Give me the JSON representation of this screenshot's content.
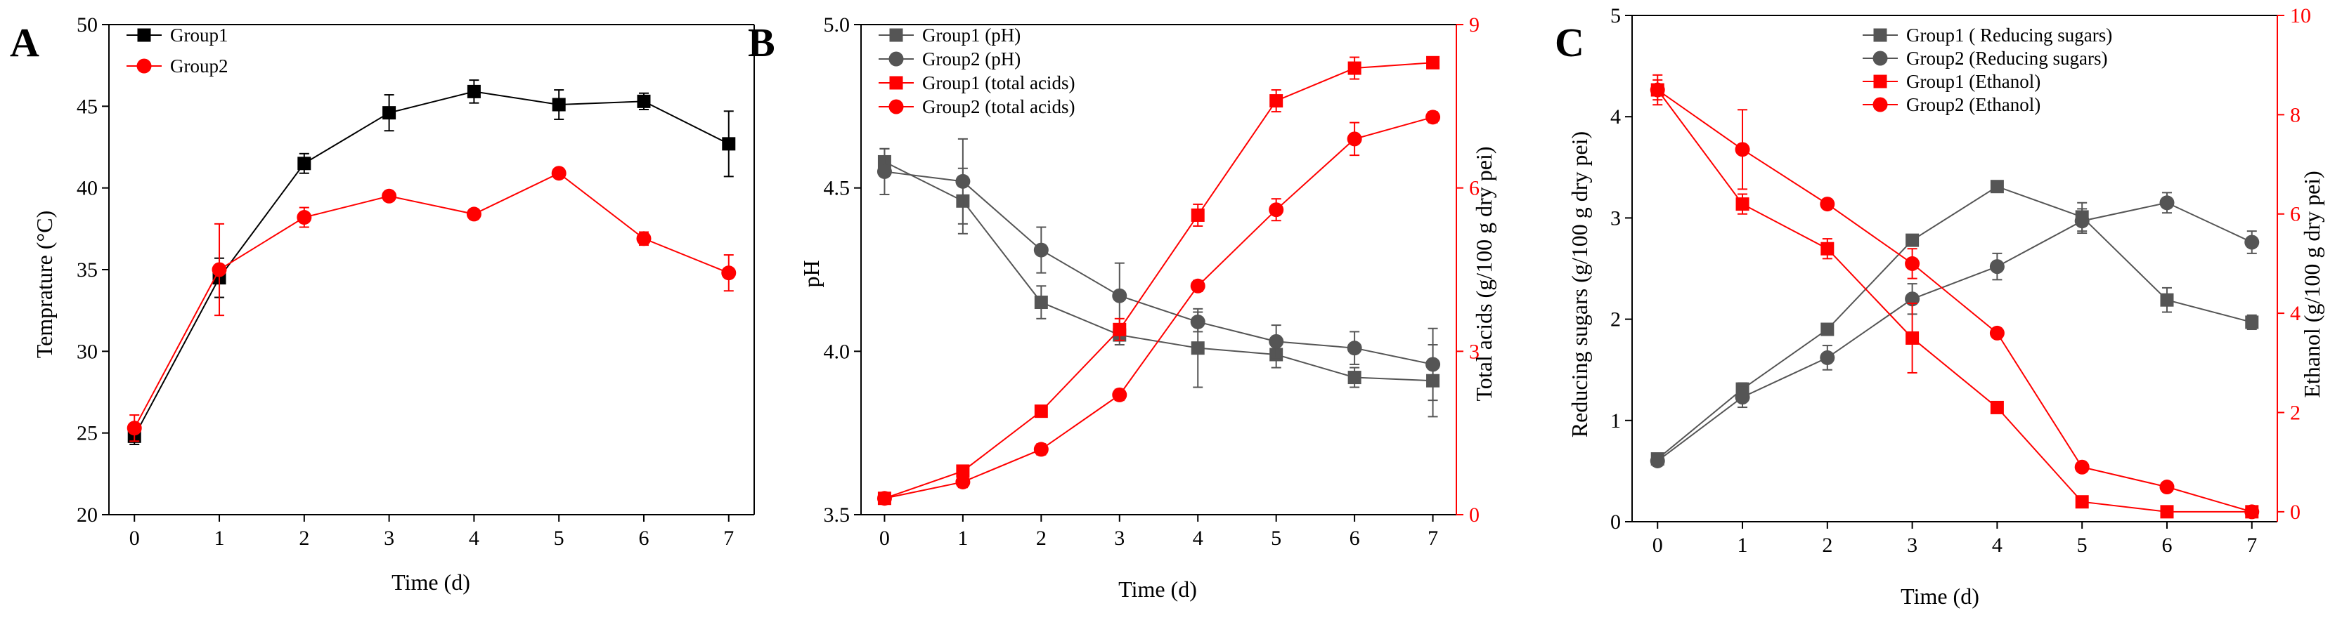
{
  "figure": {
    "panels": [
      {
        "letter": "A",
        "xlabel": "Time (d)",
        "ylabel": "Temprature (°C)"
      },
      {
        "letter": "B",
        "xlabel": "Time (d)",
        "ylabel": "pH",
        "ylabel_right": "Total acids (g/100 g dry pei)"
      },
      {
        "letter": "C",
        "xlabel": "Time (d)",
        "ylabel": "Reducing sugars (g/100 g dry pei)",
        "ylabel_right": "Ethanol (g/100 g dry pei)"
      }
    ]
  },
  "chart_data": [
    {
      "type": "line",
      "panel": "A",
      "xlabel": "Time (d)",
      "ylabel": "Temprature (°C)",
      "x": [
        0,
        1,
        2,
        3,
        4,
        5,
        6,
        7
      ],
      "xlim": [
        -0.3,
        7.3
      ],
      "ylim": [
        20,
        50
      ],
      "xticks": [
        0,
        1,
        2,
        3,
        4,
        5,
        6,
        7
      ],
      "yticks": [
        20,
        25,
        30,
        35,
        40,
        45,
        50
      ],
      "legend_position": "top-left",
      "grid": false,
      "series": [
        {
          "name": "Group1",
          "axis": "left",
          "marker": "square",
          "color": "#000000",
          "values": [
            24.8,
            34.5,
            41.5,
            44.6,
            45.9,
            45.1,
            45.3,
            42.7
          ],
          "errors": [
            0.5,
            1.2,
            0.6,
            1.1,
            0.7,
            0.9,
            0.5,
            2.0
          ]
        },
        {
          "name": "Group2",
          "axis": "left",
          "marker": "circle",
          "color": "#ff0000",
          "values": [
            25.3,
            35.0,
            38.2,
            39.5,
            38.4,
            40.9,
            36.9,
            34.8
          ],
          "errors": [
            0.8,
            2.8,
            0.6,
            0.3,
            0.3,
            0.3,
            0.4,
            1.1
          ]
        }
      ]
    },
    {
      "type": "line",
      "panel": "B",
      "xlabel": "Time (d)",
      "ylabel": "pH",
      "ylabel_right": "Total acids (g/100 g dry pei)",
      "x": [
        0,
        1,
        2,
        3,
        4,
        5,
        6,
        7
      ],
      "xlim": [
        -0.3,
        7.3
      ],
      "ylim": [
        3.5,
        5.0
      ],
      "ylim_right": [
        0,
        9
      ],
      "xticks": [
        0,
        1,
        2,
        3,
        4,
        5,
        6,
        7
      ],
      "yticks": [
        3.5,
        4.0,
        4.5,
        5.0
      ],
      "yticks_right": [
        0,
        3,
        6,
        9
      ],
      "legend_position": "top-left",
      "grid": false,
      "series": [
        {
          "name": "Group1 (pH)",
          "axis": "left",
          "marker": "square",
          "color": "#555555",
          "values": [
            4.58,
            4.46,
            4.15,
            4.05,
            4.01,
            3.99,
            3.92,
            3.91
          ],
          "errors": [
            0.04,
            0.1,
            0.05,
            0.03,
            0.12,
            0.04,
            0.03,
            0.11
          ]
        },
        {
          "name": "Group2 (pH)",
          "axis": "left",
          "marker": "circle",
          "color": "#555555",
          "values": [
            4.55,
            4.52,
            4.31,
            4.17,
            4.09,
            4.03,
            4.01,
            3.96
          ],
          "errors": [
            0.07,
            0.13,
            0.07,
            0.1,
            0.03,
            0.05,
            0.05,
            0.11
          ]
        },
        {
          "name": "Group1 (total acids)",
          "axis": "right",
          "marker": "square",
          "color": "#ff0000",
          "values": [
            0.3,
            0.8,
            1.9,
            3.4,
            5.5,
            7.6,
            8.2,
            8.3
          ],
          "errors": [
            0.1,
            0.1,
            0.1,
            0.2,
            0.2,
            0.2,
            0.2,
            0.1
          ]
        },
        {
          "name": "Group2 (total acids)",
          "axis": "right",
          "marker": "circle",
          "color": "#ff0000",
          "values": [
            0.3,
            0.6,
            1.2,
            2.2,
            4.2,
            5.6,
            6.9,
            7.3
          ],
          "errors": [
            0.1,
            0.1,
            0.1,
            0.1,
            0.1,
            0.2,
            0.3,
            0.1
          ]
        }
      ]
    },
    {
      "type": "line",
      "panel": "C",
      "xlabel": "Time (d)",
      "ylabel": "Reducing sugars (g/100 g dry pei)",
      "ylabel_right": "Ethanol (g/100 g dry pei)",
      "x": [
        0,
        1,
        2,
        3,
        4,
        5,
        6,
        7
      ],
      "xlim": [
        -0.3,
        7.3
      ],
      "ylim": [
        0,
        5
      ],
      "ylim_right": [
        -0.2,
        10
      ],
      "xticks": [
        0,
        1,
        2,
        3,
        4,
        5,
        6,
        7
      ],
      "yticks": [
        0,
        1,
        2,
        3,
        4,
        5
      ],
      "yticks_right": [
        0,
        2,
        4,
        6,
        8,
        10
      ],
      "legend_position": "top-center",
      "grid": false,
      "series": [
        {
          "name": "Group1 ( Reducing sugars)",
          "axis": "left",
          "marker": "square",
          "color": "#555555",
          "values": [
            0.62,
            1.31,
            1.9,
            2.78,
            3.31,
            3.01,
            2.19,
            1.97
          ],
          "errors": [
            0.05,
            0.06,
            0.05,
            0.05,
            0.04,
            0.14,
            0.12,
            0.07
          ]
        },
        {
          "name": "Group2 (Reducing sugars)",
          "axis": "left",
          "marker": "circle",
          "color": "#555555",
          "values": [
            0.6,
            1.23,
            1.62,
            2.2,
            2.52,
            2.97,
            3.15,
            2.76
          ],
          "errors": [
            0.05,
            0.1,
            0.12,
            0.15,
            0.13,
            0.12,
            0.1,
            0.11
          ]
        },
        {
          "name": "Group1 (Ethanol)",
          "axis": "right",
          "marker": "square",
          "color": "#ff0000",
          "values": [
            8.5,
            6.2,
            5.3,
            3.5,
            2.1,
            0.2,
            0.0,
            0.0
          ],
          "errors": [
            0.2,
            0.2,
            0.2,
            0.7,
            0.1,
            0.05,
            0.05,
            0.05
          ]
        },
        {
          "name": "Group2 (Ethanol)",
          "axis": "right",
          "marker": "circle",
          "color": "#ff0000",
          "values": [
            8.5,
            7.3,
            6.2,
            5.0,
            3.6,
            0.9,
            0.5,
            0.0
          ],
          "errors": [
            0.3,
            0.8,
            0.1,
            0.3,
            0.1,
            0.05,
            0.05,
            0.05
          ]
        }
      ]
    }
  ]
}
